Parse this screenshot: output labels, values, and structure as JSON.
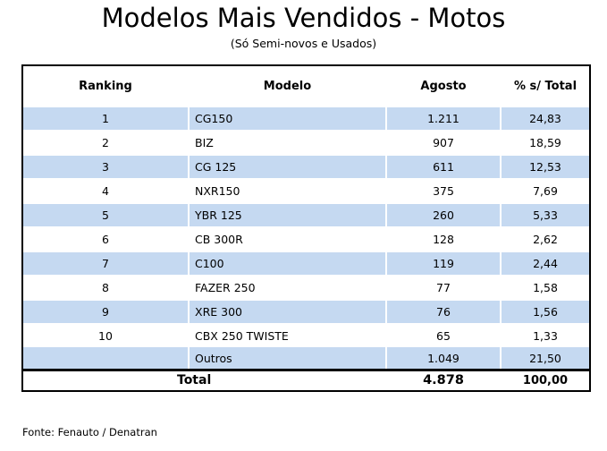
{
  "title": "Modelos Mais Vendidos - Motos",
  "subtitle": "(Só Semi-novos e Usados)",
  "table": {
    "headers": {
      "ranking": "Ranking",
      "modelo": "Modelo",
      "agosto": "Agosto",
      "percent": "% s/ Total"
    },
    "rows": [
      {
        "ranking": "1",
        "modelo": "CG150",
        "agosto": "1.211",
        "percent": "24,83"
      },
      {
        "ranking": "2",
        "modelo": "BIZ",
        "agosto": "907",
        "percent": "18,59"
      },
      {
        "ranking": "3",
        "modelo": "CG 125",
        "agosto": "611",
        "percent": "12,53"
      },
      {
        "ranking": "4",
        "modelo": "NXR150",
        "agosto": "375",
        "percent": "7,69"
      },
      {
        "ranking": "5",
        "modelo": "YBR 125",
        "agosto": "260",
        "percent": "5,33"
      },
      {
        "ranking": "6",
        "modelo": "CB 300R",
        "agosto": "128",
        "percent": "2,62"
      },
      {
        "ranking": "7",
        "modelo": "C100",
        "agosto": "119",
        "percent": "2,44"
      },
      {
        "ranking": "8",
        "modelo": "FAZER 250",
        "agosto": "77",
        "percent": "1,58"
      },
      {
        "ranking": "9",
        "modelo": "XRE 300",
        "agosto": "76",
        "percent": "1,56"
      },
      {
        "ranking": "10",
        "modelo": "CBX 250 TWISTE",
        "agosto": "65",
        "percent": "1,33"
      },
      {
        "ranking": "",
        "modelo": "Outros",
        "agosto": "1.049",
        "percent": "21,50"
      }
    ],
    "total": {
      "label": "Total",
      "agosto": "4.878",
      "percent": "100,00"
    }
  },
  "source": "Fonte: Fenauto / Denatran"
}
